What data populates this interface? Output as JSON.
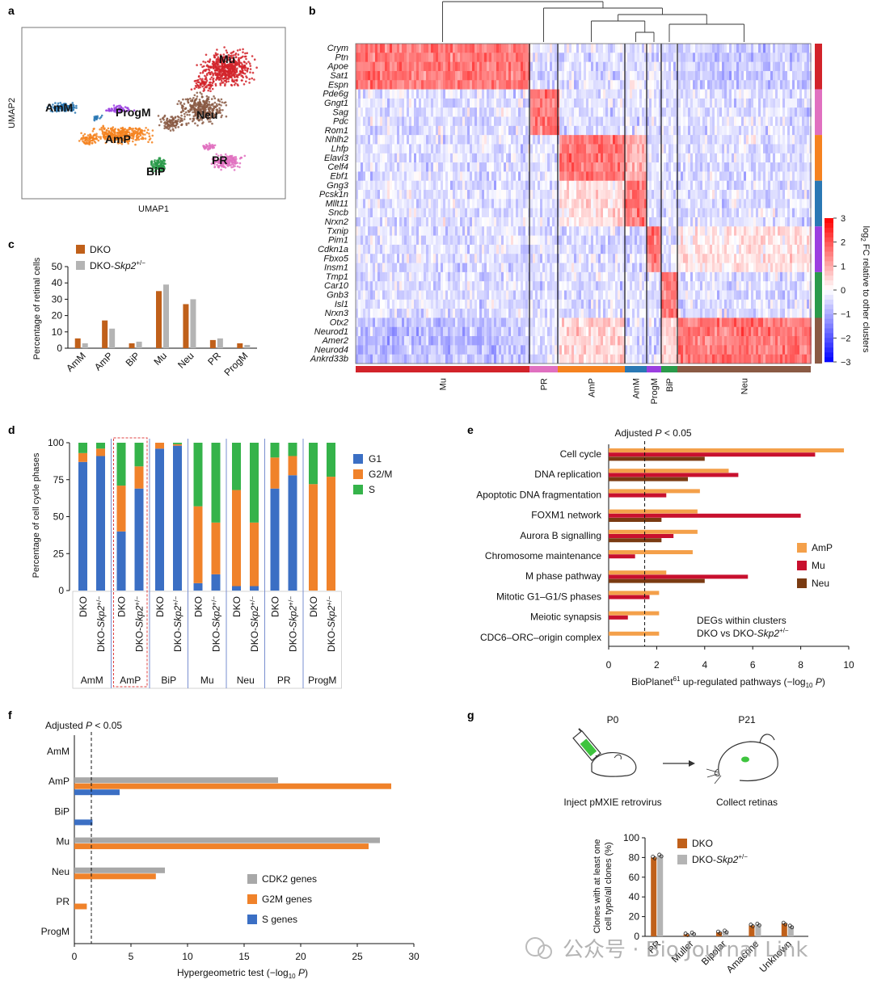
{
  "colors": {
    "dko": "#c0601a",
    "dko_skp2": "#b4b4b4",
    "G1": "#3b6fc4",
    "G2M": "#f0822a",
    "S": "#35b34a",
    "AmP": "#f4a04a",
    "Mu": "#c8102e",
    "Neu": "#7a3b12",
    "CDK2": "#a8a8a8",
    "G2Mgenes": "#f0822a",
    "Sgenes": "#3b6fc4",
    "cl_Mu": "#d2232a",
    "cl_PR": "#e070c0",
    "cl_AmP": "#f5821f",
    "cl_AmM": "#2a78b4",
    "cl_ProgM": "#9b3fe0",
    "cl_BiP": "#2a9a4a",
    "cl_Neu": "#8a5a44"
  },
  "panel_labels": {
    "a": "a",
    "b": "b",
    "c": "c",
    "d": "d",
    "e": "e",
    "f": "f",
    "g": "g"
  },
  "umap": {
    "xlabel": "UMAP1",
    "ylabel": "UMAP2",
    "clusters": [
      {
        "key": "Mu",
        "label": "Mu"
      },
      {
        "key": "Neu",
        "label": "Neu"
      },
      {
        "key": "AmM",
        "label": "AmM"
      },
      {
        "key": "ProgM",
        "label": "ProgM"
      },
      {
        "key": "AmP",
        "label": "AmP"
      },
      {
        "key": "PR",
        "label": "PR"
      },
      {
        "key": "BiP",
        "label": "BiP"
      }
    ]
  },
  "heatmap": {
    "genes": [
      "Crym",
      "Ptn",
      "Apoe",
      "Sat1",
      "Espn",
      "Pde6g",
      "Gngt1",
      "Sag",
      "Pdc",
      "Rom1",
      "Nhlh2",
      "Lhfp",
      "Elavl3",
      "Celf4",
      "Ebf1",
      "Gng3",
      "Pcsk1n",
      "Mllt11",
      "Sncb",
      "Nrxn2",
      "Txnip",
      "Pim1",
      "Cdkn1a",
      "Fbxo5",
      "Insm1",
      "Tmp1",
      "Car10",
      "Gnb3",
      "Isl1",
      "Nrxn3",
      "Otx2",
      "Neurod1",
      "Amer2",
      "Neurod4",
      "Ankrd33b"
    ],
    "clusters": [
      "Mu",
      "PR",
      "AmP",
      "AmM",
      "ProgM",
      "BiP",
      "Neu"
    ],
    "colorbar_ticks": [
      "3",
      "2",
      "1",
      "0",
      "−1",
      "−2",
      "−3"
    ],
    "colorbar_label_pre": "log",
    "colorbar_label_sub": "2",
    "colorbar_label_post": "FC relative to other clusters"
  },
  "chart_data": [
    {
      "panel": "c",
      "type": "bar",
      "ylabel": "Percentage of retinal cells",
      "ylim": [
        0,
        50
      ],
      "yticks": [
        "0",
        "10",
        "20",
        "30",
        "40",
        "50"
      ],
      "categories": [
        "AmM",
        "AmP",
        "BiP",
        "Mu",
        "Neu",
        "PR",
        "ProgM"
      ],
      "legend": {
        "dko": "DKO",
        "skp2_pre": "DKO-",
        "skp2_it": "Skp2",
        "skp2_sup": "+/−"
      },
      "series": [
        {
          "name": "DKO",
          "values": [
            6,
            17,
            3,
            35,
            27,
            5,
            3
          ]
        },
        {
          "name": "DKO-Skp2+/−",
          "values": [
            3,
            12,
            4,
            39,
            30,
            6,
            2
          ]
        }
      ]
    },
    {
      "panel": "d",
      "type": "bar",
      "stacked": true,
      "ylabel": "Percentage of cell cycle phases",
      "ylim": [
        0,
        100
      ],
      "yticks": [
        "0",
        "25",
        "50",
        "75",
        "100"
      ],
      "groups": [
        "AmM",
        "AmP",
        "BiP",
        "Mu",
        "Neu",
        "PR",
        "ProgM"
      ],
      "bar_labels": {
        "dko": "DKO",
        "skp2_pre": "DKO-",
        "skp2_it": "Skp2",
        "skp2_sup": "+/−"
      },
      "legend": [
        "G1",
        "G2/M",
        "S"
      ],
      "bars": [
        {
          "G1": 87,
          "G2M": 6,
          "S": 7
        },
        {
          "G1": 91,
          "G2M": 5,
          "S": 4
        },
        {
          "G1": 40,
          "G2M": 31,
          "S": 29
        },
        {
          "G1": 69,
          "G2M": 15,
          "S": 16
        },
        {
          "G1": 96,
          "G2M": 4,
          "S": 0
        },
        {
          "G1": 98,
          "G2M": 1,
          "S": 1
        },
        {
          "G1": 5,
          "G2M": 52,
          "S": 43
        },
        {
          "G1": 11,
          "G2M": 35,
          "S": 54
        },
        {
          "G1": 3,
          "G2M": 65,
          "S": 32
        },
        {
          "G1": 3,
          "G2M": 43,
          "S": 54
        },
        {
          "G1": 69,
          "G2M": 21,
          "S": 10
        },
        {
          "G1": 78,
          "G2M": 13,
          "S": 9
        },
        {
          "G1": 0,
          "G2M": 72,
          "S": 28
        },
        {
          "G1": 0,
          "G2M": 77,
          "S": 23
        }
      ]
    },
    {
      "panel": "e",
      "type": "bar",
      "orientation": "horizontal",
      "threshold": 1.5,
      "threshold_label_pre": "Adjusted ",
      "threshold_label_it": "P",
      "threshold_label_post": " < 0.05",
      "xlim": [
        0,
        10
      ],
      "xticks": [
        "0",
        "2",
        "4",
        "6",
        "8",
        "10"
      ],
      "xlabel_pre": "BioPlanet",
      "xlabel_sup": "61",
      "xlabel_mid": " up-regulated pathways (−log",
      "xlabel_sub": "10",
      "xlabel_it": "P",
      "xlabel_post": ")",
      "note_line1": "DEGs within clusters",
      "note_line2_pre": "DKO vs DKO-",
      "note_line2_it": "Skp2",
      "note_line2_sup": "+/−",
      "categories": [
        "Cell cycle",
        "DNA replication",
        "Apoptotic DNA fragmentation",
        "FOXM1 network",
        "Aurora B signalling",
        "Chromosome maintenance",
        "M phase pathway",
        "Mitotic G1–G1/S phases",
        "Meiotic synapsis",
        "CDC6–ORC–origin complex"
      ],
      "series": [
        {
          "name": "AmP",
          "values": [
            9.8,
            5.0,
            3.8,
            3.7,
            3.7,
            3.5,
            2.4,
            2.1,
            2.1,
            2.1
          ]
        },
        {
          "name": "Mu",
          "values": [
            8.6,
            5.4,
            2.4,
            8.0,
            2.7,
            1.1,
            5.8,
            1.7,
            0.8,
            0
          ]
        },
        {
          "name": "Neu",
          "values": [
            4.0,
            3.3,
            0,
            2.2,
            2.2,
            0,
            4.0,
            0,
            0,
            0
          ]
        }
      ]
    },
    {
      "panel": "f",
      "type": "bar",
      "orientation": "horizontal",
      "threshold": 1.5,
      "threshold_label_pre": "Adjusted ",
      "threshold_label_it": "P",
      "threshold_label_post": " < 0.05",
      "xlim": [
        0,
        30
      ],
      "xticks": [
        "0",
        "5",
        "10",
        "15",
        "20",
        "25",
        "30"
      ],
      "xlabel_pre": "Hypergeometric test (−log",
      "xlabel_sub": "10",
      "xlabel_it": "P",
      "xlabel_post": ")",
      "categories": [
        "AmM",
        "AmP",
        "BiP",
        "Mu",
        "Neu",
        "PR",
        "ProgM"
      ],
      "series": [
        {
          "name": "CDK2 genes",
          "values": [
            0,
            18,
            0,
            27,
            8,
            0,
            0
          ]
        },
        {
          "name": "G2M genes",
          "values": [
            0,
            28,
            0,
            26,
            7.2,
            1.1,
            0
          ]
        },
        {
          "name": "S genes",
          "values": [
            0,
            4,
            1.6,
            0,
            0,
            0,
            0
          ]
        }
      ]
    },
    {
      "panel": "g",
      "type": "bar",
      "ylabel_line1": "Clones with at least one",
      "ylabel_line2": "cell type/all clones (%)",
      "ylim": [
        0,
        100
      ],
      "yticks": [
        "0",
        "20",
        "40",
        "60",
        "80",
        "100"
      ],
      "categories": [
        "PR",
        "Muller",
        "Bipolar",
        "Amacrine",
        "Unknown"
      ],
      "legend": {
        "dko": "DKO",
        "skp2_pre": "DKO-",
        "skp2_it": "Skp2",
        "skp2_sup": "+/−"
      },
      "series": [
        {
          "name": "DKO",
          "values": [
            80,
            2,
            4,
            11,
            13
          ]
        },
        {
          "name": "DKO-Skp2+/−",
          "values": [
            82,
            3,
            5,
            12,
            10
          ]
        }
      ]
    }
  ],
  "schematic": {
    "p0": "P0",
    "p21": "P21",
    "inject": "Inject pMXIE retrovirus",
    "collect": "Collect retinas"
  },
  "watermark": "公众号 · Bio Journal Link"
}
